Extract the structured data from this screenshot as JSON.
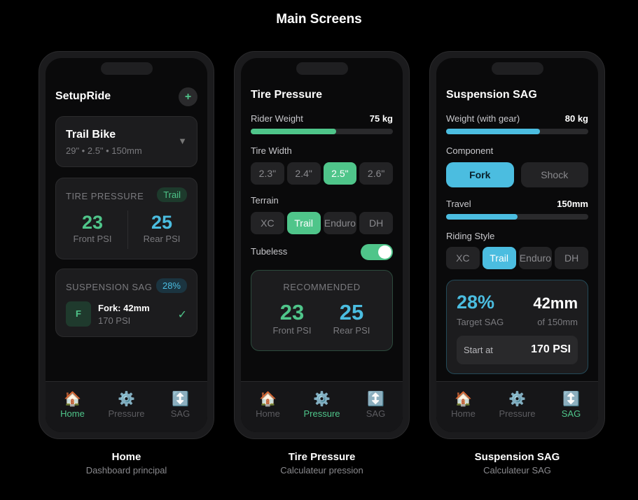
{
  "title": "Main Screens",
  "colors": {
    "green": "#4fc58a",
    "blue": "#4bbde0"
  },
  "nav": [
    {
      "label": "Home",
      "icon": "house-icon"
    },
    {
      "label": "Pressure",
      "icon": "gear-icon"
    },
    {
      "label": "SAG",
      "icon": "up-down-arrow-icon"
    }
  ],
  "home": {
    "app_title": "SetupRide",
    "add": "+",
    "bike": {
      "name": "Trail Bike",
      "specs": "29\" • 2.5\" • 150mm",
      "arrow": "▼"
    },
    "tire": {
      "label": "TIRE PRESSURE",
      "badge": "Trail",
      "front": "23",
      "front_label": "Front PSI",
      "rear": "25",
      "rear_label": "Rear PSI"
    },
    "sag": {
      "label": "SUSPENSION SAG",
      "badge": "28%",
      "letter": "F",
      "title": "Fork: 42mm",
      "psi": "170 PSI",
      "check": "✓"
    },
    "caption": "Home",
    "subcaption": "Dashboard principal"
  },
  "pressure": {
    "title": "Tire Pressure",
    "weight_label": "Rider Weight",
    "weight": "75 kg",
    "weight_fraction": 0.6,
    "width_label": "Tire Width",
    "widths": [
      "2.3\"",
      "2.4\"",
      "2.5\"",
      "2.6\""
    ],
    "width_selected": 2,
    "terrain_label": "Terrain",
    "terrains": [
      "XC",
      "Trail",
      "Enduro",
      "DH"
    ],
    "terrain_selected": 1,
    "tubeless_label": "Tubeless",
    "tubeless": true,
    "rec_label": "RECOMMENDED",
    "front": "23",
    "front_label": "Front PSI",
    "rear": "25",
    "rear_label": "Rear PSI",
    "caption": "Tire Pressure",
    "subcaption": "Calculateur pression"
  },
  "sag": {
    "title": "Suspension SAG",
    "weight_label": "Weight (with gear)",
    "weight": "80 kg",
    "weight_fraction": 0.66,
    "component_label": "Component",
    "components": [
      "Fork",
      "Shock"
    ],
    "component_selected": 0,
    "travel_label": "Travel",
    "travel": "150mm",
    "travel_fraction": 0.5,
    "style_label": "Riding Style",
    "styles": [
      "XC",
      "Trail",
      "Enduro",
      "DH"
    ],
    "style_selected": 1,
    "target": "28%",
    "target_label": "Target SAG",
    "mm": "42mm",
    "mm_label": "of 150mm",
    "start_label": "Start at",
    "start": "170 PSI",
    "caption": "Suspension SAG",
    "subcaption": "Calculateur SAG"
  }
}
